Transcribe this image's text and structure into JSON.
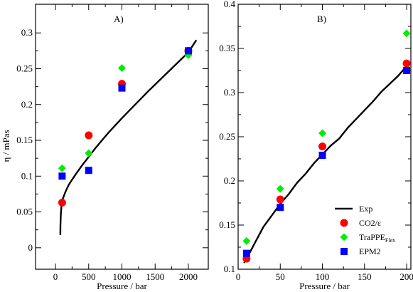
{
  "ylabel": "η  /  mPas",
  "chart_data": [
    {
      "type": "line+scatter",
      "panel_label": "A)",
      "xlabel": "Pressure  /  bar",
      "xlim": [
        -300,
        2300
      ],
      "ylim": [
        -0.03,
        0.34
      ],
      "xticks": [
        0,
        500,
        1000,
        1500,
        2000
      ],
      "yticks": [
        0,
        0.05,
        0.1,
        0.15,
        0.2,
        0.25,
        0.3
      ],
      "ytick_labels": [
        "0",
        "0.05",
        "0.1",
        "0.15",
        "0.2",
        "0.25",
        "0.3"
      ],
      "xtick_labels": [
        "0",
        "500",
        "1000",
        "1500",
        "2000"
      ],
      "series": [
        {
          "name": "Exp",
          "kind": "line",
          "color": "#000000",
          "x": [
            73,
            75,
            80,
            90,
            100,
            150,
            200,
            300,
            400,
            500,
            600,
            700,
            800,
            900,
            1000,
            1200,
            1400,
            1600,
            1800,
            2000,
            2120
          ],
          "y": [
            0.018,
            0.03,
            0.045,
            0.058,
            0.066,
            0.078,
            0.088,
            0.102,
            0.115,
            0.127,
            0.139,
            0.15,
            0.161,
            0.171,
            0.181,
            0.2,
            0.219,
            0.237,
            0.255,
            0.273,
            0.29
          ]
        },
        {
          "name": "CO2/ε",
          "kind": "circle",
          "color": "#ff0000",
          "x": [
            100,
            500,
            1000,
            2000
          ],
          "y": [
            0.063,
            0.157,
            0.229,
            0.275
          ]
        },
        {
          "name": "TraPPE",
          "kind": "diamond",
          "color": "#00ee00",
          "x": [
            100,
            500,
            1000,
            2000
          ],
          "y": [
            0.111,
            0.132,
            0.251,
            0.269
          ]
        },
        {
          "name": "EPM2",
          "kind": "square",
          "color": "#0000ff",
          "x": [
            100,
            500,
            1000,
            2000
          ],
          "y": [
            0.1,
            0.108,
            0.223,
            0.275
          ]
        }
      ]
    },
    {
      "type": "line+scatter",
      "panel_label": "B)",
      "xlabel": "Pressure  /  bar",
      "xlim": [
        0,
        205
      ],
      "ylim": [
        0.1,
        0.4
      ],
      "xticks": [
        0,
        50,
        100,
        150,
        200
      ],
      "yticks": [
        0.1,
        0.15,
        0.2,
        0.25,
        0.3,
        0.35,
        0.4
      ],
      "ytick_labels": [
        "0.1",
        "0.15",
        "0.2",
        "0.25",
        "0.3",
        "0.35",
        "0.4"
      ],
      "xtick_labels": [
        "0",
        "50",
        "100",
        "150",
        "200"
      ],
      "series": [
        {
          "name": "Exp",
          "kind": "line",
          "color": "#000000",
          "x": [
            7,
            10,
            20,
            30,
            40,
            50,
            60,
            70,
            80,
            90,
            100,
            110,
            120,
            130,
            140,
            150,
            160,
            170,
            180,
            190,
            200
          ],
          "y": [
            0.107,
            0.112,
            0.13,
            0.148,
            0.161,
            0.174,
            0.185,
            0.198,
            0.208,
            0.22,
            0.23,
            0.24,
            0.248,
            0.26,
            0.27,
            0.28,
            0.29,
            0.301,
            0.31,
            0.319,
            0.33
          ]
        },
        {
          "name": "CO2/ε",
          "kind": "circle",
          "color": "#ff0000",
          "x": [
            10,
            50,
            100,
            200
          ],
          "y": [
            0.112,
            0.179,
            0.239,
            0.333
          ]
        },
        {
          "name": "TraPPE",
          "kind": "diamond",
          "color": "#00ee00",
          "x": [
            10,
            50,
            100,
            200
          ],
          "y": [
            0.132,
            0.191,
            0.254,
            0.367
          ]
        },
        {
          "name": "EPM2",
          "kind": "square",
          "color": "#0000ff",
          "x": [
            10,
            50,
            100,
            200
          ],
          "y": [
            0.118,
            0.17,
            0.229,
            0.325
          ]
        }
      ]
    }
  ],
  "legend": {
    "placement": "bottom-right of panel B",
    "items": [
      {
        "kind": "line",
        "color": "#000000",
        "label": "Exp",
        "sub": ""
      },
      {
        "kind": "circle",
        "color": "#ff0000",
        "label": "CO2/ε",
        "sub": ""
      },
      {
        "kind": "diamond",
        "color": "#00ee00",
        "label": "TraPPE",
        "sub": "Flex"
      },
      {
        "kind": "square",
        "color": "#0000ff",
        "label": "EPM2",
        "sub": ""
      }
    ]
  }
}
